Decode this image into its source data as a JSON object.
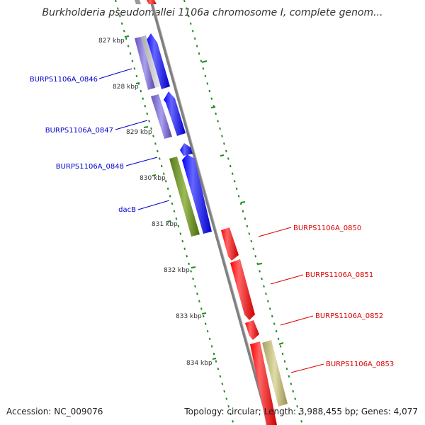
{
  "title": "Burkholderia pseudomallei 1106a chromosome I, complete genom...",
  "accession_label": "Accession: NC_009076",
  "summary": "Topology: circular; Length: 3,988,455 bp; Genes: 4,077",
  "ticks": [
    "827 kbp",
    "828 kbp",
    "829 kbp",
    "830 kbp",
    "831 kbp",
    "832 kbp",
    "833 kbp",
    "834 kbp"
  ],
  "genes": [
    {
      "label": "BURPS1106A_0846",
      "color": "#0000cc"
    },
    {
      "label": "BURPS1106A_0847",
      "color": "#0000cc"
    },
    {
      "label": "BURPS1106A_0848",
      "color": "#0000cc"
    },
    {
      "label": "dacB",
      "color": "#0000cc"
    },
    {
      "label": "BURPS1106A_0850",
      "color": "#dd0000"
    },
    {
      "label": "BURPS1106A_0851",
      "color": "#dd0000"
    },
    {
      "label": "BURPS1106A_0852",
      "color": "#dd0000"
    },
    {
      "label": "BURPS1106A_0853",
      "color": "#dd0000"
    }
  ],
  "colors": {
    "backbone": "#808080",
    "forward_cds": "#0000ff",
    "reverse_cds": "#ff0000",
    "cog_purple": "#7766cc",
    "cog_olive": "#6b8e23",
    "cog_khaki": "#bdb76b",
    "gc_dash": "#228b22"
  }
}
